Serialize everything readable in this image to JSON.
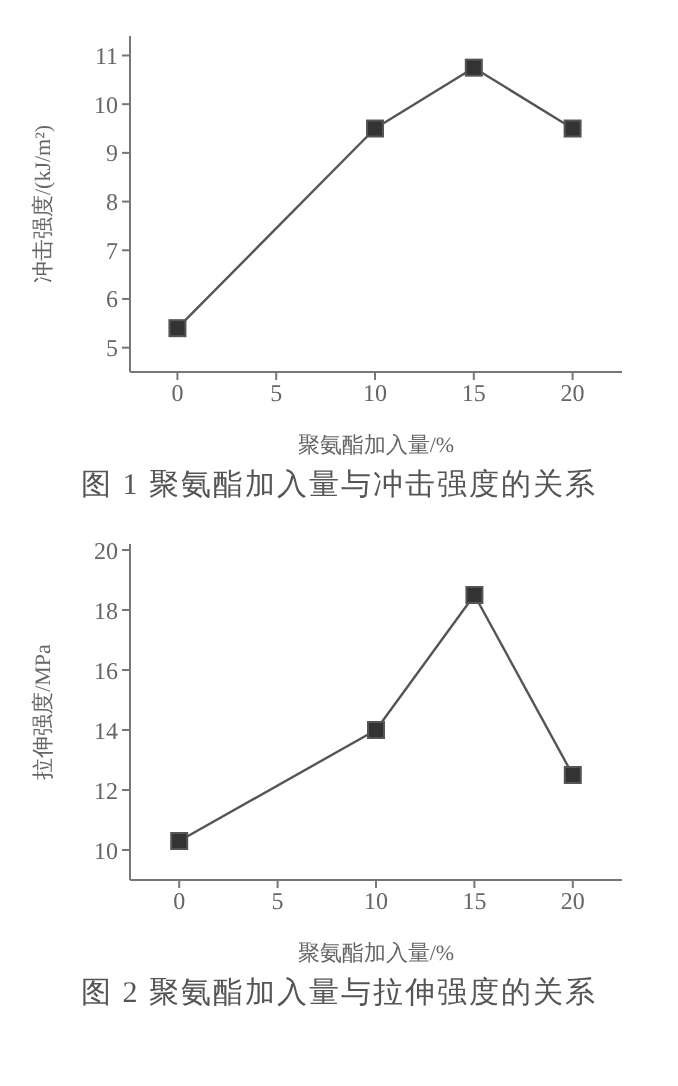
{
  "chart_data": [
    {
      "type": "line",
      "title": "图 1  聚氨酯加入量与冲击强度的关系",
      "xlabel": "聚氨酯加入量/%",
      "ylabel": "冲击强度/(kJ/m²)",
      "x": [
        0,
        10,
        15,
        20
      ],
      "series": [
        {
          "color": "#555555",
          "values": [
            5.4,
            9.5,
            10.75,
            9.5
          ]
        }
      ],
      "xlim": [
        -2.4,
        22.5
      ],
      "xticks": [
        0,
        5,
        10,
        15,
        20
      ],
      "ylim": [
        4.5,
        11.4
      ],
      "yticks": [
        5,
        6,
        7,
        8,
        9,
        10,
        11
      ],
      "marker": "square",
      "grid": false,
      "legend": false
    },
    {
      "type": "line",
      "title": "图 2  聚氨酯加入量与拉伸强度的关系",
      "xlabel": "聚氨酯加入量/%",
      "ylabel": "拉伸强度/MPa",
      "x": [
        0,
        10,
        15,
        20
      ],
      "series": [
        {
          "color": "#555555",
          "values": [
            10.3,
            14.0,
            18.5,
            12.5
          ]
        }
      ],
      "xlim": [
        -2.5,
        22.5
      ],
      "xticks": [
        0,
        5,
        10,
        15,
        20
      ],
      "ylim": [
        9,
        20.2
      ],
      "yticks": [
        10,
        12,
        14,
        16,
        18,
        20
      ],
      "marker": "square",
      "grid": false,
      "legend": false
    }
  ]
}
